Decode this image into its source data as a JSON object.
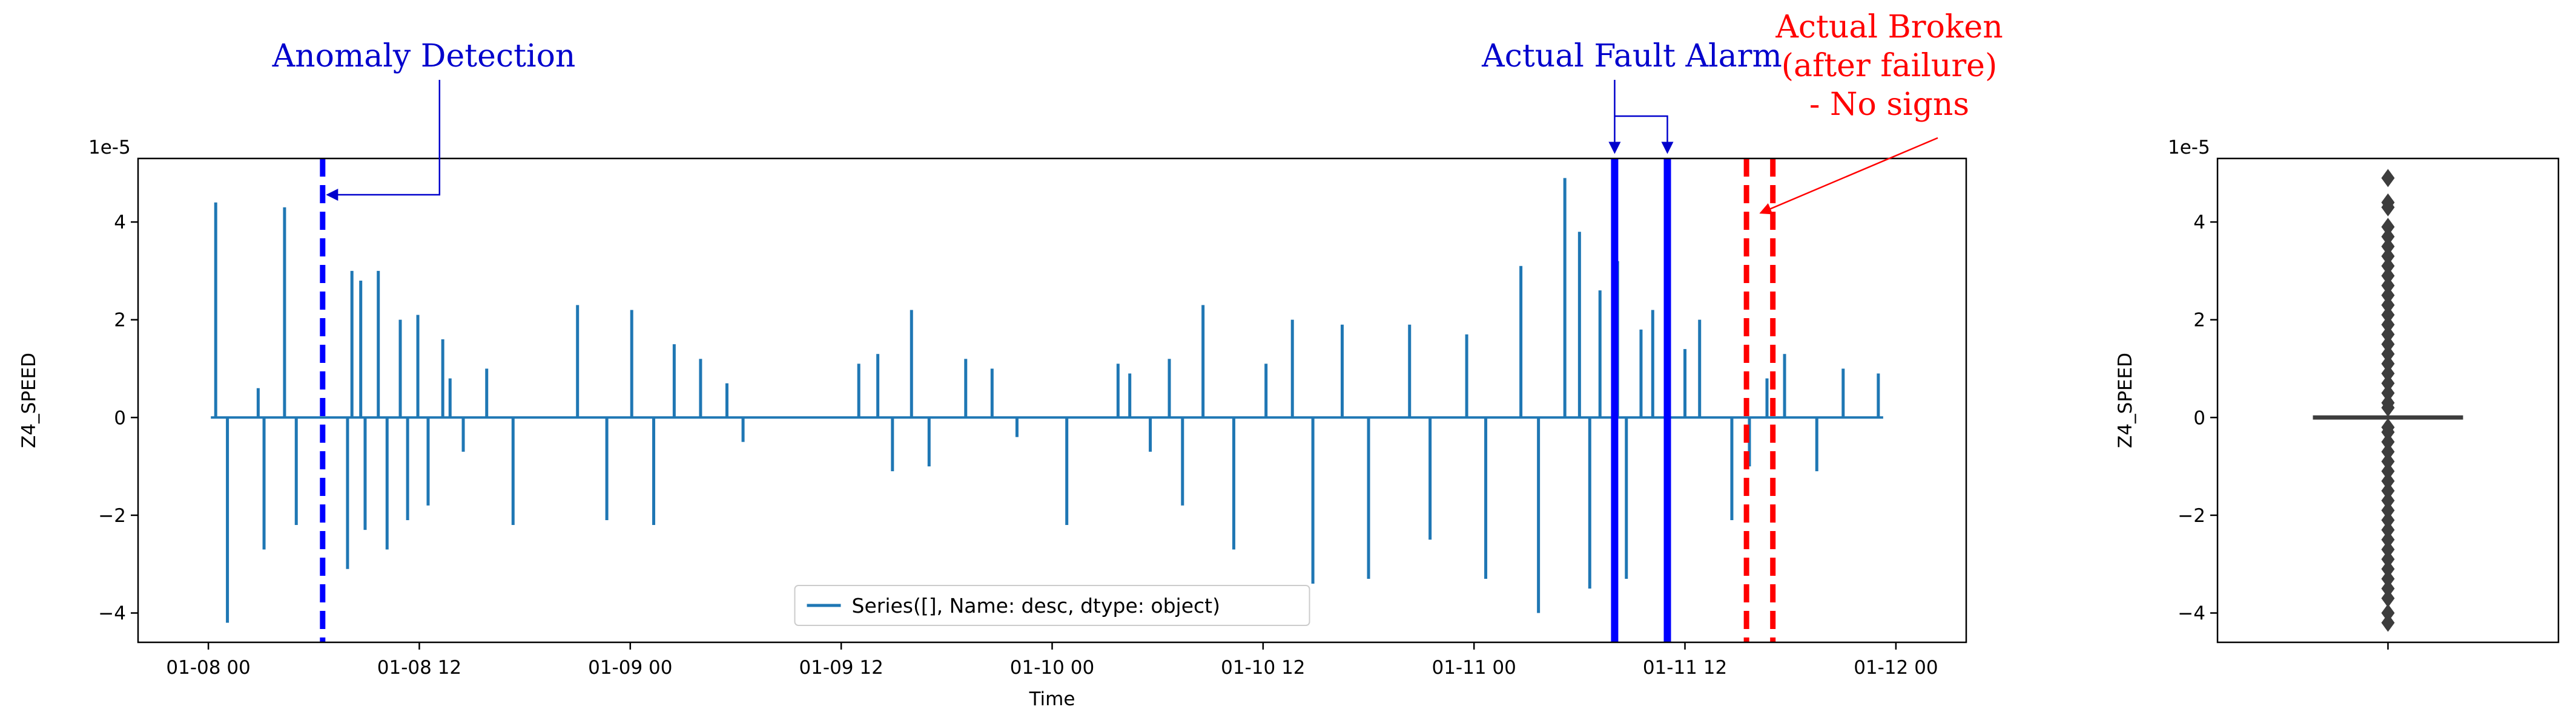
{
  "chart_data": [
    {
      "type": "line",
      "xlabel": "Time",
      "ylabel": "Z4_SPEED",
      "y_offset_label": "1e-5",
      "x_range": [
        "2021-01-07 20:00",
        "2021-01-12 04:00"
      ],
      "x_ticks": [
        "01-08 00",
        "01-08 12",
        "01-09 00",
        "01-09 12",
        "01-10 00",
        "01-10 12",
        "01-11 00",
        "01-11 12",
        "01-12 00"
      ],
      "ylim": [
        -4.6,
        5.3
      ],
      "y_ticks": [
        "−4",
        "−2",
        "0",
        "2",
        "4"
      ],
      "y_tick_values": [
        -4,
        -2,
        0,
        2,
        4
      ],
      "grid": false,
      "legend_position": "lower center",
      "series": [
        {
          "name": "Series([], Name: desc, dtype: object)",
          "color": "#1f77b4",
          "x": [
            "2021-01-08 00:25",
            "2021-01-08 01:05",
            "2021-01-08 02:50",
            "2021-01-08 03:10",
            "2021-01-08 04:20",
            "2021-01-08 05:00",
            "2021-01-08 07:55",
            "2021-01-08 08:10",
            "2021-01-08 08:40",
            "2021-01-08 08:55",
            "2021-01-08 09:40",
            "2021-01-08 10:10",
            "2021-01-08 10:55",
            "2021-01-08 11:20",
            "2021-01-08 11:55",
            "2021-01-08 12:30",
            "2021-01-08 13:20",
            "2021-01-08 13:45",
            "2021-01-08 14:30",
            "2021-01-08 15:50",
            "2021-01-08 17:20",
            "2021-01-08 21:00",
            "2021-01-08 22:40",
            "2021-01-09 00:05",
            "2021-01-09 01:20",
            "2021-01-09 02:30",
            "2021-01-09 04:00",
            "2021-01-09 05:30",
            "2021-01-09 06:25",
            "2021-01-09 13:00",
            "2021-01-09 14:05",
            "2021-01-09 14:55",
            "2021-01-09 16:00",
            "2021-01-09 17:00",
            "2021-01-09 19:05",
            "2021-01-09 20:35",
            "2021-01-09 22:00",
            "2021-01-10 00:50",
            "2021-01-10 03:45",
            "2021-01-10 04:25",
            "2021-01-10 05:35",
            "2021-01-10 06:40",
            "2021-01-10 07:25",
            "2021-01-10 08:35",
            "2021-01-10 10:20",
            "2021-01-10 12:10",
            "2021-01-10 13:40",
            "2021-01-10 14:50",
            "2021-01-10 16:30",
            "2021-01-10 18:00",
            "2021-01-10 20:20",
            "2021-01-10 21:30",
            "2021-01-10 23:35",
            "2021-01-11 00:40",
            "2021-01-11 02:40",
            "2021-01-11 03:40",
            "2021-01-11 05:10",
            "2021-01-11 06:00",
            "2021-01-11 06:35",
            "2021-01-11 07:10",
            "2021-01-11 08:10",
            "2021-01-11 08:40",
            "2021-01-11 09:30",
            "2021-01-11 10:10",
            "2021-01-11 11:00",
            "2021-01-11 12:00",
            "2021-01-11 12:50",
            "2021-01-11 14:40",
            "2021-01-11 15:40",
            "2021-01-11 16:40",
            "2021-01-11 17:40",
            "2021-01-11 19:30",
            "2021-01-11 21:00",
            "2021-01-11 23:00"
          ],
          "values": [
            4.4,
            -4.2,
            0.6,
            -2.7,
            4.3,
            -2.2,
            -3.1,
            3.0,
            2.8,
            -2.3,
            3.0,
            -2.7,
            2.0,
            -2.1,
            2.1,
            -1.8,
            1.6,
            0.8,
            -0.7,
            1.0,
            -2.2,
            2.3,
            -2.1,
            2.2,
            -2.2,
            1.5,
            1.2,
            0.7,
            -0.5,
            1.1,
            1.3,
            -1.1,
            2.2,
            -1.0,
            1.2,
            1.0,
            -0.4,
            -2.2,
            1.1,
            0.9,
            -0.7,
            1.2,
            -1.8,
            2.3,
            -2.7,
            1.1,
            2.0,
            -3.4,
            1.9,
            -3.3,
            1.9,
            -2.5,
            1.7,
            -3.3,
            3.1,
            -4.0,
            4.9,
            3.8,
            -3.5,
            2.6,
            3.2,
            -3.3,
            1.8,
            2.2,
            0.8,
            1.4,
            2.0,
            -2.1,
            -1.0,
            0.8,
            1.3,
            -1.1,
            1.0,
            0.9
          ]
        }
      ],
      "vertical_lines": [
        {
          "x": "2021-01-08 06:30",
          "style": "dashed",
          "color": "#0000ff"
        },
        {
          "x": "2021-01-11 08:00",
          "style": "solid",
          "color": "#0000ff"
        },
        {
          "x": "2021-01-11 11:00",
          "style": "solid",
          "color": "#0000ff"
        },
        {
          "x": "2021-01-11 15:30",
          "style": "dashed",
          "color": "#ff0000"
        },
        {
          "x": "2021-01-11 17:00",
          "style": "dashed",
          "color": "#ff0000"
        }
      ],
      "annotations": [
        {
          "text": "Anomaly Detection",
          "color": "#0000cc"
        },
        {
          "text": "Actual Fault Alarm",
          "color": "#0000cc"
        },
        {
          "text": "Actual Broken",
          "color": "#ff0000"
        },
        {
          "text": "(after failure)",
          "color": "#ff0000"
        },
        {
          "text": "- No signs",
          "color": "#ff0000"
        }
      ]
    },
    {
      "type": "box",
      "ylabel": "Z4_SPEED",
      "y_offset_label": "1e-5",
      "ylim": [
        -4.6,
        5.3
      ],
      "y_ticks": [
        "−4",
        "−2",
        "0",
        "2",
        "4"
      ],
      "y_tick_values": [
        -4,
        -2,
        0,
        2,
        4
      ],
      "median": 0,
      "q1": 0,
      "q3": 0,
      "whiskers": [
        0,
        0
      ],
      "outliers": [
        4.9,
        4.4,
        4.3,
        3.9,
        3.7,
        3.5,
        3.3,
        3.1,
        2.9,
        2.7,
        2.5,
        2.3,
        2.1,
        1.9,
        1.7,
        1.5,
        1.3,
        1.1,
        0.9,
        0.7,
        0.5,
        0.3,
        0.2,
        -0.2,
        -0.3,
        -0.5,
        -0.7,
        -0.9,
        -1.1,
        -1.3,
        -1.5,
        -1.7,
        -1.9,
        -2.1,
        -2.3,
        -2.5,
        -2.7,
        -2.9,
        -3.1,
        -3.3,
        -3.5,
        -3.7,
        -4.0,
        -4.2
      ]
    }
  ]
}
